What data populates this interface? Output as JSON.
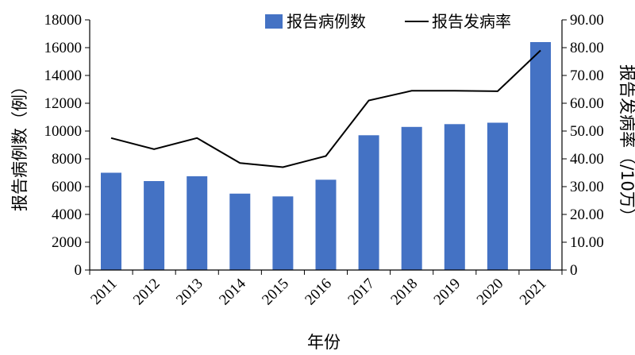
{
  "chart_data": {
    "type": "bar+line",
    "categories": [
      "2011",
      "2012",
      "2013",
      "2014",
      "2015",
      "2016",
      "2017",
      "2018",
      "2019",
      "2020",
      "2021"
    ],
    "series": [
      {
        "name": "报告病例数",
        "type": "bar",
        "axis": "left",
        "color": "#4472C4",
        "values": [
          7000,
          6400,
          6750,
          5500,
          5300,
          6500,
          9700,
          10300,
          10500,
          10600,
          16400
        ]
      },
      {
        "name": "报告发病率",
        "type": "line",
        "axis": "right",
        "color": "#000000",
        "values": [
          47.5,
          43.5,
          47.5,
          38.5,
          37.0,
          41.0,
          61.0,
          64.5,
          64.5,
          64.3,
          79.0
        ]
      }
    ],
    "xlabel": "年份",
    "ylabel_left": "报告病例数（例）",
    "ylabel_right": "报告发病率（/10万）",
    "ylim_left": [
      0,
      18000
    ],
    "ylim_right": [
      0,
      90
    ],
    "yticks_left": [
      "0",
      "2000",
      "4000",
      "6000",
      "8000",
      "10000",
      "12000",
      "14000",
      "16000",
      "18000"
    ],
    "yticks_right": [
      "0",
      "10.00",
      "20.00",
      "30.00",
      "40.00",
      "50.00",
      "60.00",
      "70.00",
      "80.00",
      "90.00"
    ],
    "grid": false,
    "legend_position": "top"
  }
}
